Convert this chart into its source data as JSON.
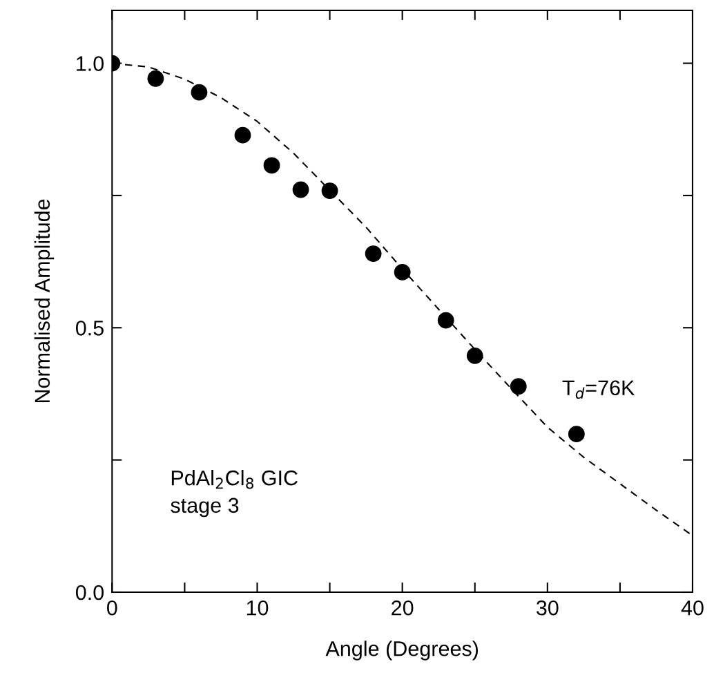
{
  "chart_data": {
    "type": "scatter",
    "xlabel": "Angle (Degrees)",
    "ylabel": "Normalised Amplitude",
    "xlim": [
      0,
      40
    ],
    "ylim": [
      0,
      1.1
    ],
    "xticks": [
      0,
      {
        "value": 5,
        "label": null
      },
      10,
      {
        "value": 15,
        "label": null
      },
      20,
      {
        "value": 25,
        "label": null
      },
      30,
      {
        "value": 35,
        "label": null
      },
      40
    ],
    "yticks": [
      {
        "value": 0,
        "label": "0.0"
      },
      {
        "value": 0.25,
        "label": null
      },
      0.5,
      {
        "value": 0.75,
        "label": null
      },
      {
        "value": 1,
        "label": "1.0"
      }
    ],
    "grid": false,
    "legend": false,
    "series": [
      {
        "color": "#000000",
        "marker": "circle",
        "x": [
          0,
          3,
          6,
          9,
          11,
          13,
          15,
          18,
          20,
          23,
          25,
          28,
          32
        ],
        "values": [
          1.0,
          0.971,
          0.945,
          0.864,
          0.807,
          0.761,
          0.759,
          0.64,
          0.605,
          0.514,
          0.447,
          0.389,
          0.299
        ]
      },
      {
        "type": "line",
        "color": "#000000",
        "line_style": "dashed",
        "marker": "none",
        "x": [
          0,
          2.5,
          5,
          7.5,
          10,
          12.5,
          15,
          17.5,
          20,
          22.5,
          25,
          27.5,
          30,
          32.5,
          35,
          37.5,
          40
        ],
        "values": [
          1.0,
          0.993,
          0.97,
          0.935,
          0.89,
          0.83,
          0.76,
          0.69,
          0.611,
          0.535,
          0.459,
          0.385,
          0.312,
          0.255,
          0.205,
          0.155,
          0.107
        ]
      }
    ],
    "annotations": [
      "T$_{d}$=76K",
      "PdAl$_{2}$Cl$_{8}$ GIC\nstage 3"
    ]
  }
}
